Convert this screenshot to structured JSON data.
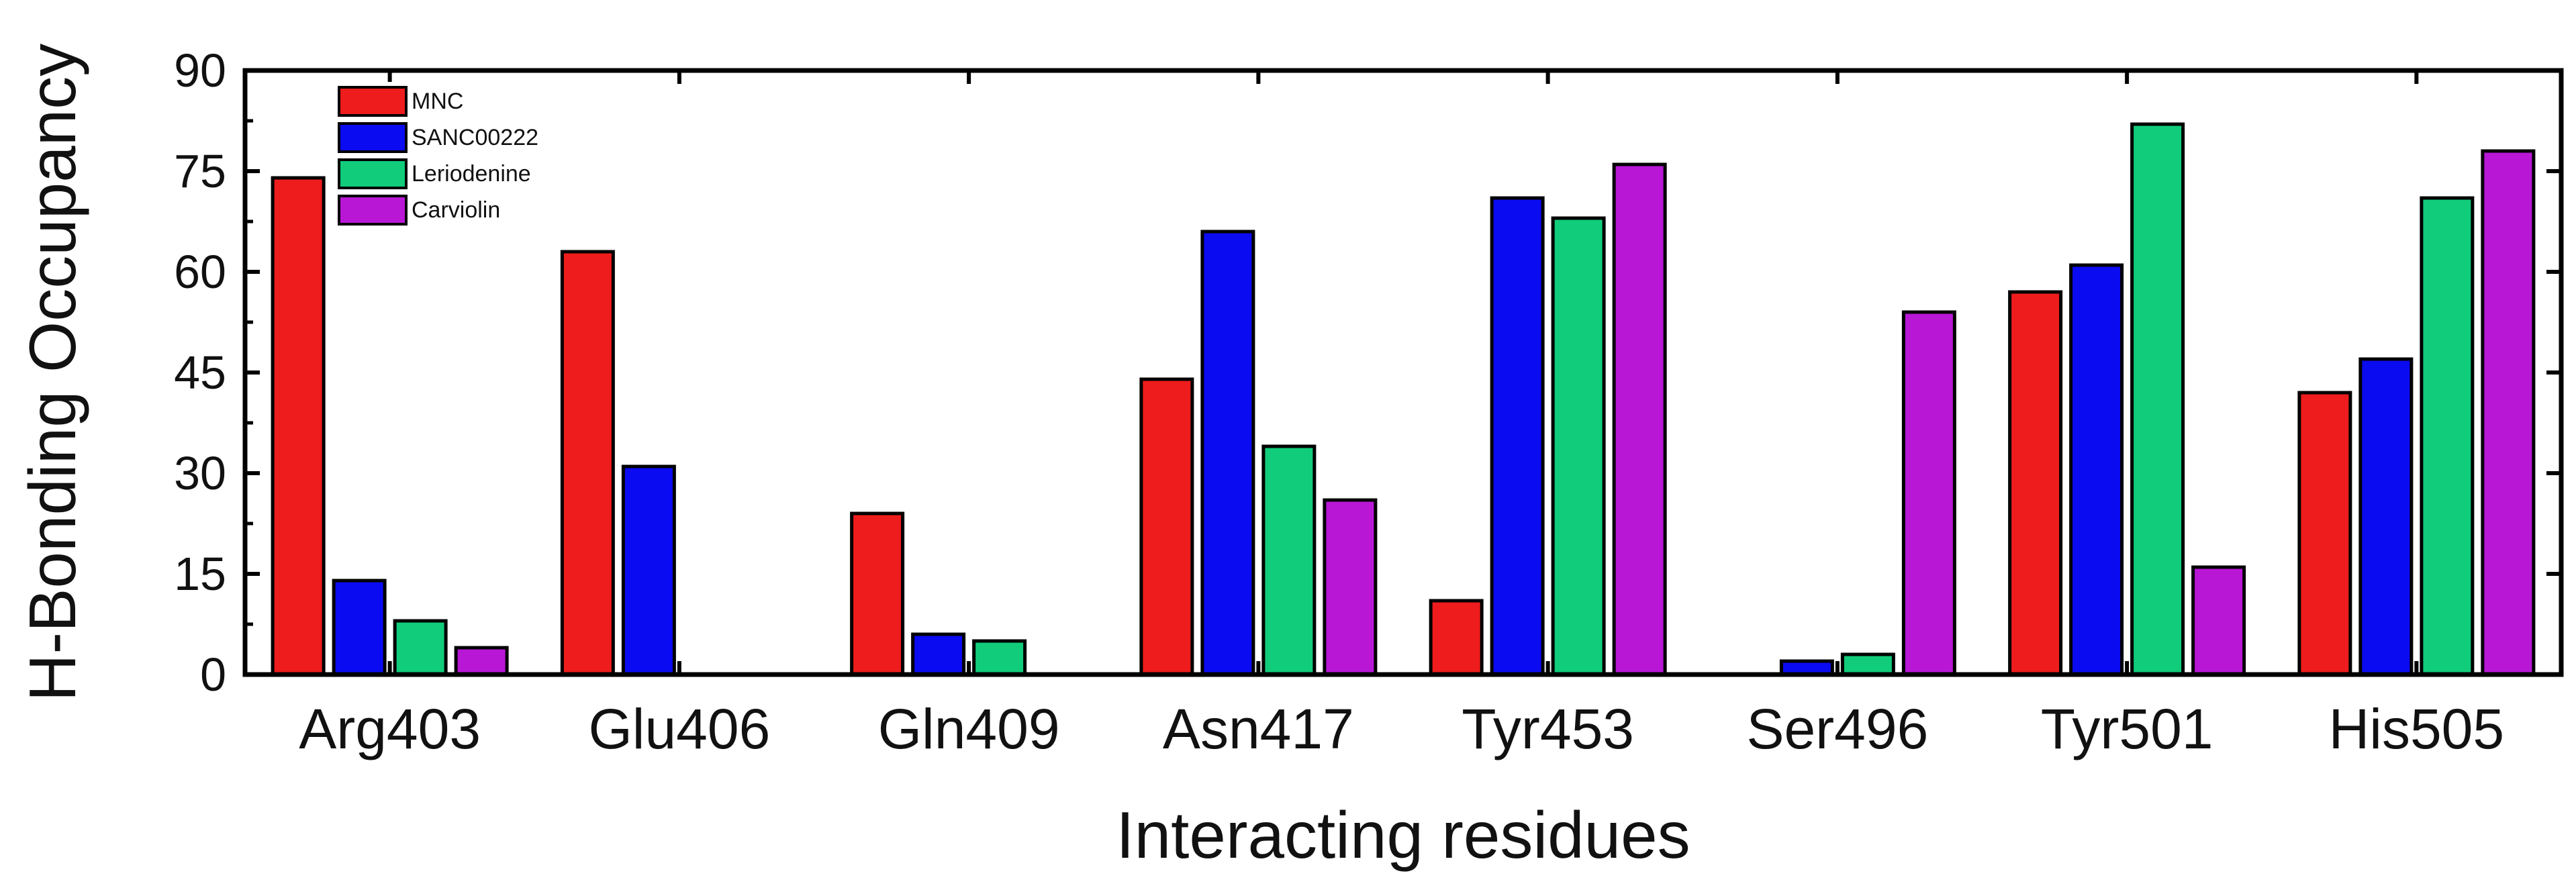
{
  "chart_data": {
    "type": "bar",
    "title": "",
    "xlabel": "Interacting residues",
    "ylabel": "H-Bonding Occupancy",
    "ylim": [
      0,
      90
    ],
    "yticks": [
      0,
      15,
      30,
      45,
      60,
      75,
      90
    ],
    "categories": [
      "Arg403",
      "Glu406",
      "Gln409",
      "Asn417",
      "Tyr453",
      "Ser496",
      "Tyr501",
      "His505"
    ],
    "series": [
      {
        "name": "MNC",
        "color": "#ee1c1c",
        "values": [
          74,
          63,
          24,
          44,
          11,
          0,
          57,
          42
        ]
      },
      {
        "name": "SANC00222",
        "color": "#0b0bf2",
        "values": [
          14,
          31,
          6,
          66,
          71,
          2,
          61,
          47
        ]
      },
      {
        "name": "Leriodenine",
        "color": "#11cc7a",
        "values": [
          8,
          0,
          5,
          34,
          68,
          3,
          82,
          71
        ]
      },
      {
        "name": "Carviolin",
        "color": "#b817d6",
        "values": [
          4,
          0,
          0,
          26,
          76,
          54,
          16,
          78
        ]
      }
    ],
    "legend_position": "top-left",
    "grid": false
  }
}
